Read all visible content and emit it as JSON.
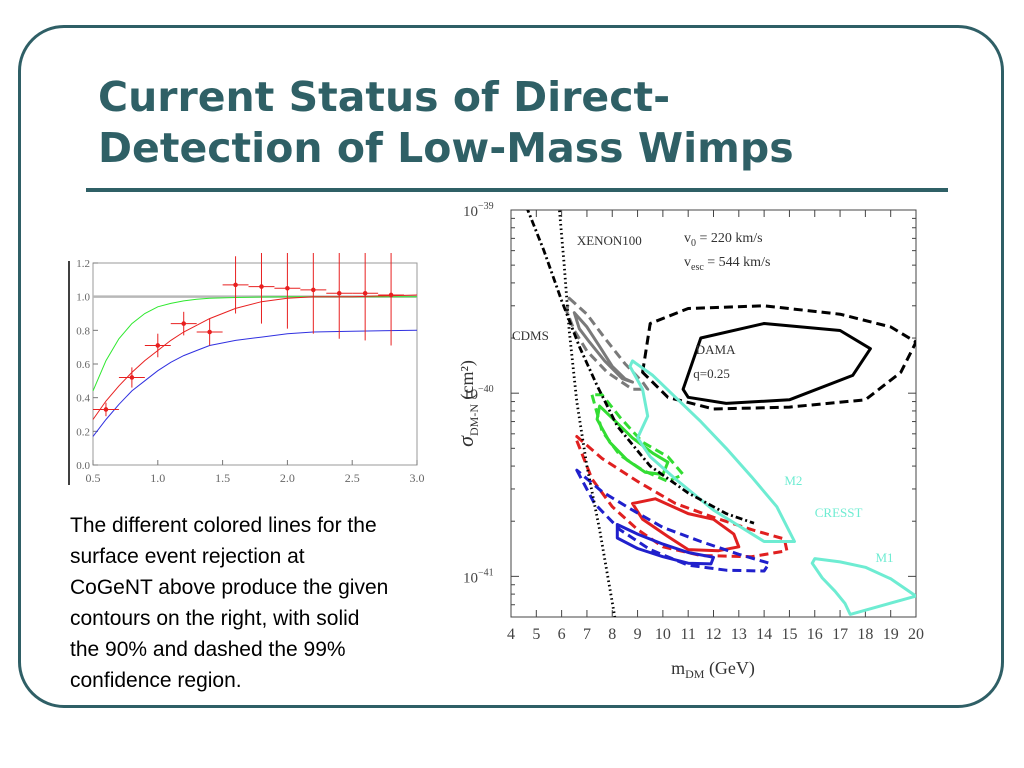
{
  "slide": {
    "title_lines": [
      "Current Status of Direct-",
      "Detection of Low-Mass Wimps"
    ],
    "caption_lines": [
      "The different colored lines for the",
      "surface event rejection at",
      "CoGeNT above produce the given",
      "contours on the right, with solid",
      "the 90% and dashed the 99%",
      "confidence region."
    ],
    "colors": {
      "title": "#2f6066",
      "border": "#2f5f66"
    }
  },
  "chart_data": [
    {
      "type": "line",
      "title": "",
      "xlabel": "",
      "ylabel": "",
      "xlim": [
        0.5,
        3.0
      ],
      "ylim": [
        0.0,
        1.2
      ],
      "x_ticks": [
        "0.5",
        "1.0",
        "1.5",
        "2.0",
        "2.5",
        "3.0"
      ],
      "y_ticks": [
        "0.0",
        "0.2",
        "0.4",
        "0.6",
        "0.8",
        "1.0",
        "1.2"
      ],
      "reference_line": 1.0,
      "series": [
        {
          "color": "#2ee82e",
          "x": [
            0.5,
            0.6,
            0.7,
            0.8,
            0.9,
            1.0,
            1.1,
            1.2,
            1.3,
            1.4,
            1.6,
            1.8,
            2.0,
            2.2,
            2.5,
            3.0
          ],
          "y": [
            0.44,
            0.62,
            0.75,
            0.84,
            0.9,
            0.94,
            0.96,
            0.975,
            0.985,
            0.99,
            0.995,
            0.998,
            1.0,
            1.0,
            1.0,
            1.0
          ]
        },
        {
          "color": "#e82020",
          "x": [
            0.5,
            0.6,
            0.7,
            0.8,
            0.9,
            1.0,
            1.1,
            1.2,
            1.3,
            1.4,
            1.6,
            1.8,
            2.0,
            2.2,
            2.5,
            3.0
          ],
          "y": [
            0.27,
            0.38,
            0.47,
            0.55,
            0.62,
            0.68,
            0.74,
            0.79,
            0.83,
            0.87,
            0.93,
            0.97,
            0.99,
            1.0,
            1.0,
            1.01
          ]
        },
        {
          "color": "#3030e0",
          "x": [
            0.5,
            0.6,
            0.7,
            0.8,
            0.9,
            1.0,
            1.1,
            1.2,
            1.3,
            1.4,
            1.6,
            1.8,
            2.0,
            2.2,
            2.5,
            3.0
          ],
          "y": [
            0.17,
            0.27,
            0.36,
            0.44,
            0.5,
            0.56,
            0.61,
            0.65,
            0.68,
            0.71,
            0.74,
            0.76,
            0.78,
            0.79,
            0.795,
            0.8
          ]
        }
      ],
      "points": {
        "color": "#e82020",
        "x": [
          0.6,
          0.8,
          1.0,
          1.2,
          1.4,
          1.6,
          1.8,
          2.0,
          2.2,
          2.4,
          2.6,
          2.8
        ],
        "y": [
          0.33,
          0.52,
          0.71,
          0.84,
          0.79,
          1.07,
          1.06,
          1.05,
          1.04,
          1.02,
          1.02,
          1.01
        ],
        "yerr": [
          0.04,
          0.06,
          0.07,
          0.07,
          0.08,
          0.17,
          0.22,
          0.24,
          0.26,
          0.27,
          0.28,
          0.3
        ],
        "xerr": 0.1
      }
    },
    {
      "type": "line",
      "title": "",
      "xlabel": "m_DM (GeV)",
      "ylabel": "σ_DM-N (cm²)",
      "y_scale": "log",
      "xlim": [
        4,
        20
      ],
      "ylim": [
        6e-42,
        1e-39
      ],
      "x_ticks": [
        "4",
        "5",
        "6",
        "7",
        "8",
        "9",
        "10",
        "11",
        "12",
        "13",
        "14",
        "15",
        "16",
        "17",
        "18",
        "19",
        "20"
      ],
      "y_ticks": [
        {
          "value": 1e-39,
          "mant": "10",
          "exp": "−39"
        },
        {
          "value": 1e-40,
          "mant": "10",
          "exp": "−40"
        },
        {
          "value": 1e-41,
          "mant": "10",
          "exp": "−41"
        }
      ],
      "annotations": [
        "XENON100",
        "CDMS",
        "DAMA",
        "q=0.25",
        "M2",
        "CRESST",
        "M1",
        "v0 = 220 km/s",
        "vesc = 544 km/s"
      ],
      "contours": [
        {
          "name": "DAMA",
          "color": "#000000",
          "dash": false,
          "points": [
            [
              10.8,
              1.05e-40
            ],
            [
              11.5,
              2e-40
            ],
            [
              14,
              2.4e-40
            ],
            [
              17,
              2.2e-40
            ],
            [
              18.2,
              1.75e-40
            ],
            [
              17.5,
              1.25e-40
            ],
            [
              15,
              9.2e-41
            ],
            [
              12.5,
              8.8e-41
            ],
            [
              11,
              9.5e-41
            ]
          ]
        },
        {
          "color": "#000000",
          "dash": true,
          "points": [
            [
              9.2,
              1.3e-40
            ],
            [
              9.5,
              2.4e-40
            ],
            [
              11,
              2.9e-40
            ],
            [
              14,
              3e-40
            ],
            [
              17,
              2.7e-40
            ],
            [
              19,
              2.3e-40
            ],
            [
              20,
              1.9e-40
            ],
            [
              19.4,
              1.3e-40
            ],
            [
              18,
              9.2e-41
            ],
            [
              15,
              8.4e-41
            ],
            [
              12,
              8.2e-41
            ],
            [
              10.2,
              9.5e-41
            ]
          ]
        },
        {
          "color": "#7a7a7a",
          "dash": false,
          "points": [
            [
              6.5,
              2.75e-40
            ],
            [
              7.0,
              2.3e-40
            ],
            [
              7.5,
              1.8e-40
            ],
            [
              8.0,
              1.4e-40
            ],
            [
              8.5,
              1.2e-40
            ],
            [
              8.8,
              1.15e-40
            ],
            [
              8.4,
              1.2e-40
            ],
            [
              7.7,
              1.5e-40
            ],
            [
              7.1,
              1.9e-40
            ],
            [
              6.7,
              2.25e-40
            ]
          ]
        },
        {
          "color": "#7a7a7a",
          "dash": true,
          "points": [
            [
              6.3,
              3.3e-40
            ],
            [
              7.0,
              2.7e-40
            ],
            [
              7.7,
              2e-40
            ],
            [
              8.5,
              1.45e-40
            ],
            [
              9.2,
              1.15e-40
            ],
            [
              9.4,
              1.05e-40
            ],
            [
              8.8,
              1.05e-40
            ],
            [
              7.8,
              1.3e-40
            ],
            [
              7.0,
              1.7e-40
            ],
            [
              6.5,
              2.2e-40
            ],
            [
              6.2,
              2.8e-40
            ]
          ]
        },
        {
          "color": "#33dd33",
          "dash": false,
          "points": [
            [
              7.4,
              7.2e-41
            ],
            [
              7.9,
              5.4e-41
            ],
            [
              8.6,
              4.3e-41
            ],
            [
              9.3,
              3.7e-41
            ],
            [
              10.0,
              3.6e-41
            ],
            [
              10.2,
              4.2e-41
            ],
            [
              9.6,
              4.7e-41
            ],
            [
              8.8,
              5.7e-41
            ],
            [
              8.0,
              7.3e-41
            ],
            [
              7.5,
              8.5e-41
            ]
          ]
        },
        {
          "color": "#33dd33",
          "dash": true,
          "points": [
            [
              7.2,
              9.8e-41
            ],
            [
              7.6,
              6.2e-41
            ],
            [
              8.3,
              4.6e-41
            ],
            [
              9.2,
              3.8e-41
            ],
            [
              10.2,
              3.3e-41
            ],
            [
              10.8,
              3.6e-41
            ],
            [
              10.2,
              4.5e-41
            ],
            [
              9.2,
              5.4e-41
            ],
            [
              8.3,
              7.4e-41
            ],
            [
              7.6,
              9.8e-41
            ]
          ]
        },
        {
          "color": "#e02020",
          "dash": false,
          "points": [
            [
              9.7,
              2.65e-41
            ],
            [
              11.0,
              2.2e-41
            ],
            [
              12.0,
              2.05e-41
            ],
            [
              12.8,
              1.7e-41
            ],
            [
              13.0,
              1.45e-41
            ],
            [
              12.2,
              1.38e-41
            ],
            [
              11.0,
              1.4e-41
            ],
            [
              10.2,
              1.65e-41
            ],
            [
              9.2,
              2.05e-41
            ],
            [
              8.8,
              2.5e-41
            ]
          ]
        },
        {
          "color": "#e02020",
          "dash": true,
          "points": [
            [
              6.6,
              5.5e-41
            ],
            [
              7.2,
              3.4e-41
            ],
            [
              8.0,
              2.4e-41
            ],
            [
              9.0,
              1.8e-41
            ],
            [
              10.0,
              1.45e-41
            ],
            [
              11.5,
              1.3e-41
            ],
            [
              13.5,
              1.28e-41
            ],
            [
              14.9,
              1.38e-41
            ],
            [
              14.8,
              1.6e-41
            ],
            [
              13.5,
              1.8e-41
            ],
            [
              12.0,
              2.1e-41
            ],
            [
              10.5,
              2.5e-41
            ],
            [
              9.0,
              3.3e-41
            ],
            [
              7.6,
              4.4e-41
            ],
            [
              6.6,
              5.8e-41
            ]
          ]
        },
        {
          "color": "#2020cc",
          "dash": false,
          "points": [
            [
              8.2,
              1.92e-41
            ],
            [
              9.0,
              1.7e-41
            ],
            [
              10.0,
              1.5e-41
            ],
            [
              11.0,
              1.35e-41
            ],
            [
              12.0,
              1.27e-41
            ],
            [
              11.9,
              1.17e-41
            ],
            [
              11.0,
              1.18e-41
            ],
            [
              10.0,
              1.28e-41
            ],
            [
              9.0,
              1.42e-41
            ],
            [
              8.2,
              1.62e-41
            ]
          ]
        },
        {
          "color": "#2020cc",
          "dash": true,
          "points": [
            [
              6.6,
              3.8e-41
            ],
            [
              7.3,
              2.5e-41
            ],
            [
              8.3,
              1.8e-41
            ],
            [
              9.5,
              1.4e-41
            ],
            [
              11.0,
              1.15e-41
            ],
            [
              12.5,
              1.08e-41
            ],
            [
              14.0,
              1.07e-41
            ],
            [
              14.2,
              1.18e-41
            ],
            [
              13.0,
              1.32e-41
            ],
            [
              11.5,
              1.55e-41
            ],
            [
              10.0,
              1.85e-41
            ],
            [
              8.8,
              2.3e-41
            ],
            [
              7.6,
              2.9e-41
            ],
            [
              6.7,
              3.7e-41
            ]
          ]
        },
        {
          "name": "M2",
          "color": "#6eecd2",
          "dash": false,
          "points": [
            [
              8.8,
              1.5e-40
            ],
            [
              9.6,
              1.25e-40
            ],
            [
              10.5,
              9.5e-41
            ],
            [
              11.5,
              7e-41
            ],
            [
              12.5,
              5e-41
            ],
            [
              13.5,
              3.5e-41
            ],
            [
              14.5,
              2.4e-41
            ],
            [
              15.2,
              1.55e-41
            ],
            [
              14.0,
              1.55e-41
            ],
            [
              12.0,
              2.3e-41
            ],
            [
              10.5,
              3.4e-41
            ],
            [
              9.5,
              4.5e-41
            ],
            [
              9.0,
              5.7e-41
            ],
            [
              9.4,
              7.5e-41
            ],
            [
              9.2,
              1.05e-40
            ],
            [
              8.7,
              1.4e-40
            ]
          ]
        },
        {
          "name": "M1",
          "color": "#6eecd2",
          "dash": false,
          "points": [
            [
              20.0,
              7.8e-42
            ],
            [
              19.0,
              9.7e-42
            ],
            [
              18.0,
              1.12e-41
            ],
            [
              17.0,
              1.2e-41
            ],
            [
              16.0,
              1.25e-41
            ],
            [
              15.9,
              1.18e-41
            ],
            [
              16.3,
              9.8e-42
            ],
            [
              16.8,
              8.3e-42
            ],
            [
              17.2,
              7.1e-42
            ],
            [
              17.4,
              6.2e-42
            ]
          ]
        }
      ],
      "lines": [
        {
          "name": "CDMS",
          "color": "#000000",
          "dash": "dashdot",
          "points": [
            [
              4.6,
              1.05e-39
            ],
            [
              5.3,
              6e-40
            ],
            [
              6.0,
              3.2e-40
            ],
            [
              6.7,
              1.8e-40
            ],
            [
              7.4,
              1.1e-40
            ],
            [
              8.2,
              6.6e-41
            ],
            [
              9.5,
              4e-41
            ],
            [
              11,
              2.85e-41
            ],
            [
              12.5,
              2.2e-41
            ],
            [
              13.6,
              1.95e-41
            ]
          ]
        },
        {
          "name": "XENON100",
          "color": "#000000",
          "dash": "dot",
          "points": [
            [
              5.9,
              1.05e-39
            ],
            [
              6.1,
              5e-40
            ],
            [
              6.3,
              2.2e-40
            ],
            [
              6.6,
              9e-41
            ],
            [
              7.0,
              4e-41
            ],
            [
              7.5,
              1.8e-41
            ],
            [
              8.1,
              6e-42
            ]
          ]
        }
      ]
    }
  ]
}
